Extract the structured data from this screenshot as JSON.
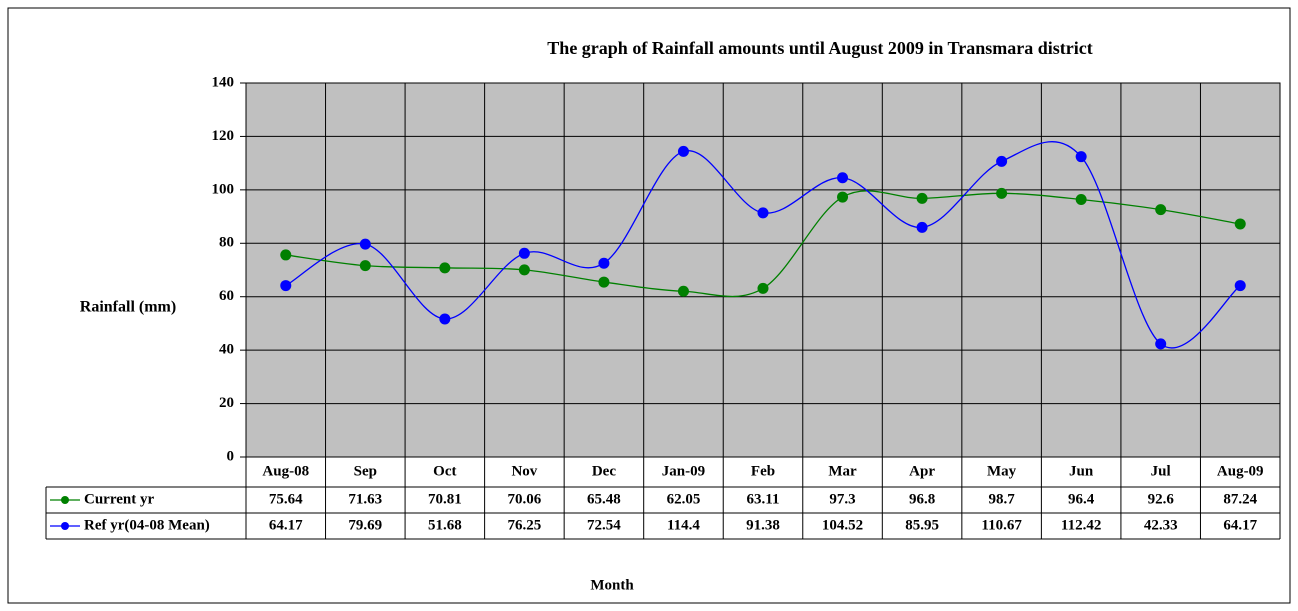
{
  "chart_data": {
    "type": "line",
    "title": "The graph of Rainfall amounts until August 2009 in Transmara district",
    "y_label": "Rainfall (mm)",
    "x_label": "Month",
    "categories": [
      "Aug-08",
      "Sep",
      "Oct",
      "Nov",
      "Dec",
      "Jan-09",
      "Feb",
      "Mar",
      "Apr",
      "May",
      "Jun",
      "Jul",
      "Aug-09"
    ],
    "series": [
      {
        "name": "Current yr",
        "color": "#008000",
        "values": [
          75.64,
          71.63,
          70.81,
          70.06,
          65.48,
          62.05,
          63.11,
          97.3,
          96.8,
          98.7,
          96.4,
          92.6,
          87.24
        ]
      },
      {
        "name": "Ref yr(04-08 Mean)",
        "color": "#0000ff",
        "values": [
          64.17,
          79.69,
          51.68,
          76.25,
          72.54,
          114.4,
          91.38,
          104.52,
          85.95,
          110.67,
          112.42,
          42.33,
          64.17
        ]
      }
    ],
    "ylim": [
      0,
      140
    ],
    "yticks": [
      0,
      20,
      40,
      60,
      80,
      100,
      120,
      140
    ],
    "grid": true,
    "smooth": true,
    "plot_background": "#c0c0c0"
  }
}
